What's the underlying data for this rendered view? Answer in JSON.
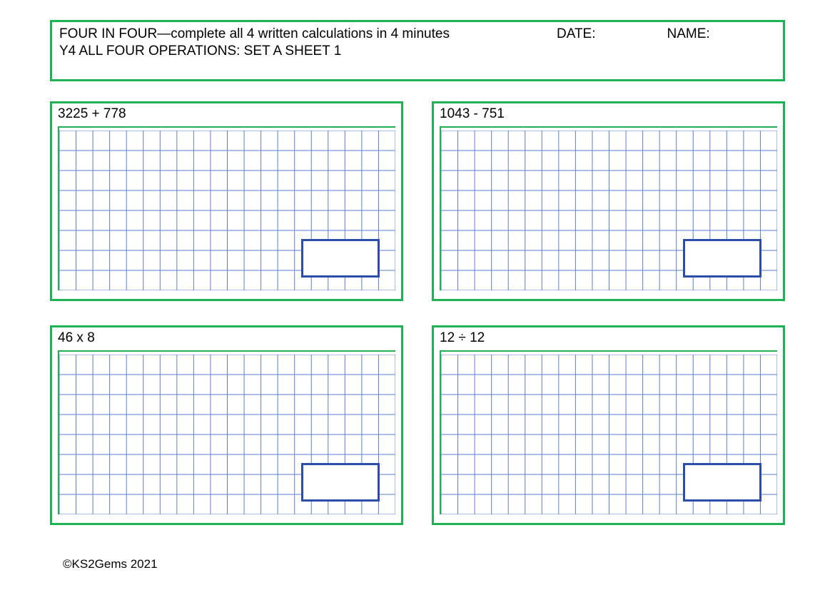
{
  "colors": {
    "green_border": "#1fb255",
    "grid_line": "#5b7fcf",
    "answer_border": "#2b4fa8",
    "text": "#000000"
  },
  "header": {
    "title": "FOUR IN FOUR—complete all 4 written calculations in 4 minutes",
    "date_label": "DATE:",
    "name_label": "NAME:",
    "subtitle": "Y4 ALL FOUR OPERATIONS: SET A SHEET 1"
  },
  "grid": {
    "cols": 20,
    "rows": 8,
    "line_weight": 1
  },
  "problems": [
    {
      "text": "3225 + 778"
    },
    {
      "text": "1043 - 751"
    },
    {
      "text": "46 x 8"
    },
    {
      "text": "12 ÷ 12"
    }
  ],
  "footer": "©KS2Gems 2021"
}
